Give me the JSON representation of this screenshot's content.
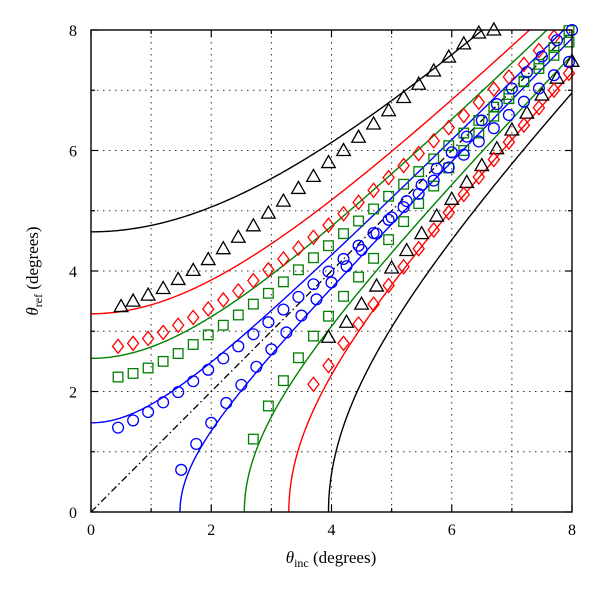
{
  "chart_data": {
    "type": "scatter",
    "xlabel_symbol": "θ",
    "xlabel_sub": "inc",
    "xlabel_unit": " (degrees)",
    "ylabel_symbol": "θ",
    "ylabel_sub": "ref",
    "ylabel_unit": " (degrees)",
    "xlim": [
      0,
      8
    ],
    "ylim": [
      0,
      8
    ],
    "xticks": [
      "0",
      "2",
      "4",
      "6",
      "8"
    ],
    "yticks": [
      "0",
      "2",
      "4",
      "6",
      "8"
    ],
    "grid": true,
    "diagonal": {
      "x": [
        0,
        8
      ],
      "y": [
        0,
        8
      ],
      "color": "#000000",
      "style": "dash-dot"
    },
    "curves": [
      {
        "color": "#000000",
        "a": 4.65
      },
      {
        "color": "#ff0000",
        "a": 3.29
      },
      {
        "color": "#008000",
        "a": 2.55
      },
      {
        "color": "#0000ff",
        "a": 1.48
      },
      {
        "color": "#0000ff",
        "a": -1.48
      },
      {
        "color": "#008000",
        "a": -2.55
      },
      {
        "color": "#ff0000",
        "a": -3.29
      },
      {
        "color": "#000000",
        "a": -3.95
      }
    ],
    "series": [
      {
        "marker": "triangle",
        "color": "#000000",
        "x": [
          0.5,
          0.7,
          0.95,
          1.2,
          1.45,
          1.7,
          1.95,
          2.2,
          2.45,
          2.7,
          2.95,
          3.2,
          3.45,
          3.7,
          3.95,
          4.2,
          4.45,
          4.7,
          4.95,
          5.2,
          5.45,
          5.7,
          5.95,
          6.2,
          6.45,
          6.7
        ],
        "y": [
          3.41,
          3.5,
          3.6,
          3.71,
          3.86,
          4.01,
          4.19,
          4.37,
          4.56,
          4.75,
          4.96,
          5.16,
          5.37,
          5.57,
          5.8,
          6.0,
          6.22,
          6.44,
          6.66,
          6.88,
          7.1,
          7.32,
          7.55,
          7.77,
          7.95,
          8.0
        ]
      },
      {
        "marker": "triangle",
        "color": "#000000",
        "x": [
          3.95,
          4.25,
          4.5,
          4.75,
          5.0,
          5.25,
          5.5,
          5.75,
          6.0,
          6.25,
          6.5,
          6.75,
          7.0,
          7.25,
          7.5,
          7.75,
          8.0
        ],
        "y": [
          2.9,
          3.15,
          3.45,
          3.75,
          4.05,
          4.34,
          4.62,
          4.91,
          5.19,
          5.47,
          5.75,
          6.03,
          6.34,
          6.62,
          6.92,
          7.2,
          7.48
        ]
      },
      {
        "marker": "diamond",
        "color": "#ff0000",
        "x": [
          0.45,
          0.7,
          0.95,
          1.2,
          1.45,
          1.7,
          1.95,
          2.2,
          2.45,
          2.7,
          2.95,
          3.2,
          3.45,
          3.7,
          3.95,
          4.2,
          4.45,
          4.7,
          4.95,
          5.2,
          5.45,
          5.7,
          5.95,
          6.2,
          6.45,
          6.7,
          6.95,
          7.2,
          7.45,
          7.7
        ],
        "y": [
          2.75,
          2.8,
          2.88,
          2.98,
          3.1,
          3.23,
          3.37,
          3.52,
          3.67,
          3.84,
          4.02,
          4.2,
          4.38,
          4.56,
          4.76,
          4.95,
          5.14,
          5.34,
          5.55,
          5.75,
          5.95,
          6.16,
          6.38,
          6.58,
          6.8,
          7.02,
          7.22,
          7.43,
          7.66,
          7.88
        ]
      },
      {
        "marker": "diamond",
        "color": "#ff0000",
        "x": [
          3.7,
          3.95,
          4.2,
          4.45,
          4.7,
          4.95,
          5.2,
          5.45,
          5.7,
          5.95,
          6.2,
          6.45,
          6.7,
          6.95,
          7.2,
          7.45,
          7.7,
          7.95
        ],
        "y": [
          2.12,
          2.43,
          2.8,
          3.12,
          3.45,
          3.76,
          4.07,
          4.37,
          4.68,
          4.97,
          5.27,
          5.56,
          5.85,
          6.14,
          6.42,
          6.71,
          7.0,
          7.28
        ]
      },
      {
        "marker": "square",
        "color": "#008000",
        "x": [
          0.45,
          0.7,
          0.95,
          1.2,
          1.45,
          1.7,
          1.95,
          2.2,
          2.45,
          2.7,
          2.95,
          3.2,
          3.45,
          3.7,
          3.95,
          4.2,
          4.45,
          4.7,
          4.95,
          5.2,
          5.45,
          5.7,
          5.95,
          6.2,
          6.45,
          6.7,
          6.95,
          7.2,
          7.45,
          7.7,
          7.95
        ],
        "y": [
          2.24,
          2.3,
          2.39,
          2.5,
          2.63,
          2.78,
          2.94,
          3.1,
          3.27,
          3.45,
          3.63,
          3.82,
          4.02,
          4.22,
          4.42,
          4.62,
          4.83,
          5.03,
          5.24,
          5.44,
          5.65,
          5.86,
          6.08,
          6.29,
          6.5,
          6.72,
          6.93,
          7.14,
          7.36,
          7.58,
          7.8
        ]
      },
      {
        "marker": "square",
        "color": "#008000",
        "x": [
          2.7,
          2.95,
          3.2,
          3.45,
          3.7,
          3.95,
          4.2,
          4.45,
          4.7,
          4.95,
          5.2,
          5.45,
          5.7,
          5.95,
          6.2,
          6.45,
          6.7,
          6.95,
          7.2,
          7.45,
          7.7,
          7.95
        ],
        "y": [
          1.21,
          1.76,
          2.18,
          2.56,
          2.92,
          3.25,
          3.58,
          3.9,
          4.21,
          4.52,
          4.82,
          5.12,
          5.41,
          5.71,
          6.0,
          6.29,
          6.57,
          6.86,
          7.15,
          7.43,
          7.71,
          7.99
        ]
      },
      {
        "marker": "circle",
        "color": "#0000ff",
        "x": [
          0.45,
          0.7,
          0.95,
          1.2,
          1.45,
          1.7,
          1.95,
          2.2,
          2.45,
          2.7,
          2.95,
          3.2,
          3.45,
          3.7,
          3.95,
          4.2,
          4.45,
          4.7,
          4.95,
          5.2,
          5.45,
          5.7,
          5.95,
          6.2,
          6.45,
          6.7,
          6.95,
          7.2,
          7.45,
          7.7,
          7.95
        ],
        "y": [
          1.4,
          1.52,
          1.66,
          1.82,
          1.99,
          2.17,
          2.36,
          2.55,
          2.75,
          2.95,
          3.15,
          3.36,
          3.57,
          3.78,
          3.99,
          4.2,
          4.42,
          4.63,
          4.85,
          5.06,
          5.28,
          5.5,
          5.72,
          5.93,
          6.15,
          6.37,
          6.59,
          6.81,
          7.03,
          7.25,
          7.47
        ]
      },
      {
        "marker": "circle",
        "color": "#0000ff",
        "x": [
          1.5,
          1.75,
          2.0,
          2.25,
          2.5,
          2.75,
          3.0,
          3.25,
          3.5,
          3.75,
          4.0,
          4.25,
          4.5,
          4.75,
          5.0,
          5.25,
          5.5,
          5.75,
          6.0,
          6.25,
          6.5,
          6.75,
          7.0,
          7.25,
          7.5,
          7.75,
          8.0
        ],
        "y": [
          0.7,
          1.13,
          1.48,
          1.81,
          2.11,
          2.41,
          2.7,
          2.98,
          3.26,
          3.53,
          3.81,
          4.08,
          4.35,
          4.62,
          4.89,
          5.16,
          5.43,
          5.7,
          5.97,
          6.23,
          6.5,
          6.77,
          7.03,
          7.3,
          7.56,
          7.83,
          8.0
        ]
      }
    ]
  }
}
